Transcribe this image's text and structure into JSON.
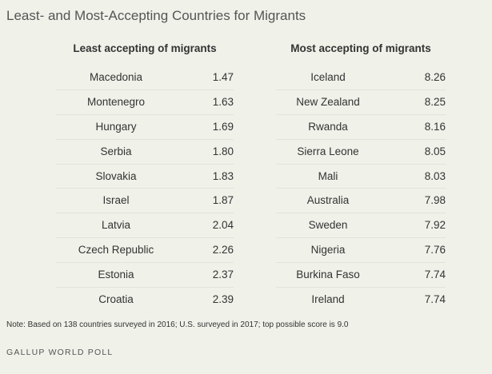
{
  "title": "Least- and Most-Accepting Countries for Migrants",
  "tables": [
    {
      "header": "Least accepting of migrants",
      "rows": [
        [
          "Macedonia",
          "1.47"
        ],
        [
          "Montenegro",
          "1.63"
        ],
        [
          "Hungary",
          "1.69"
        ],
        [
          "Serbia",
          "1.80"
        ],
        [
          "Slovakia",
          "1.83"
        ],
        [
          "Israel",
          "1.87"
        ],
        [
          "Latvia",
          "2.04"
        ],
        [
          "Czech Republic",
          "2.26"
        ],
        [
          "Estonia",
          "2.37"
        ],
        [
          "Croatia",
          "2.39"
        ]
      ]
    },
    {
      "header": "Most accepting of migrants",
      "rows": [
        [
          "Iceland",
          "8.26"
        ],
        [
          "New Zealand",
          "8.25"
        ],
        [
          "Rwanda",
          "8.16"
        ],
        [
          "Sierra Leone",
          "8.05"
        ],
        [
          "Mali",
          "8.03"
        ],
        [
          "Australia",
          "7.98"
        ],
        [
          "Sweden",
          "7.92"
        ],
        [
          "Nigeria",
          "7.76"
        ],
        [
          "Burkina Faso",
          "7.74"
        ],
        [
          "Ireland",
          "7.74"
        ]
      ]
    }
  ],
  "note": "Note: Based on 138 countries surveyed in 2016; U.S. surveyed in 2017; top possible score is 9.0",
  "source": "GALLUP WORLD POLL"
}
